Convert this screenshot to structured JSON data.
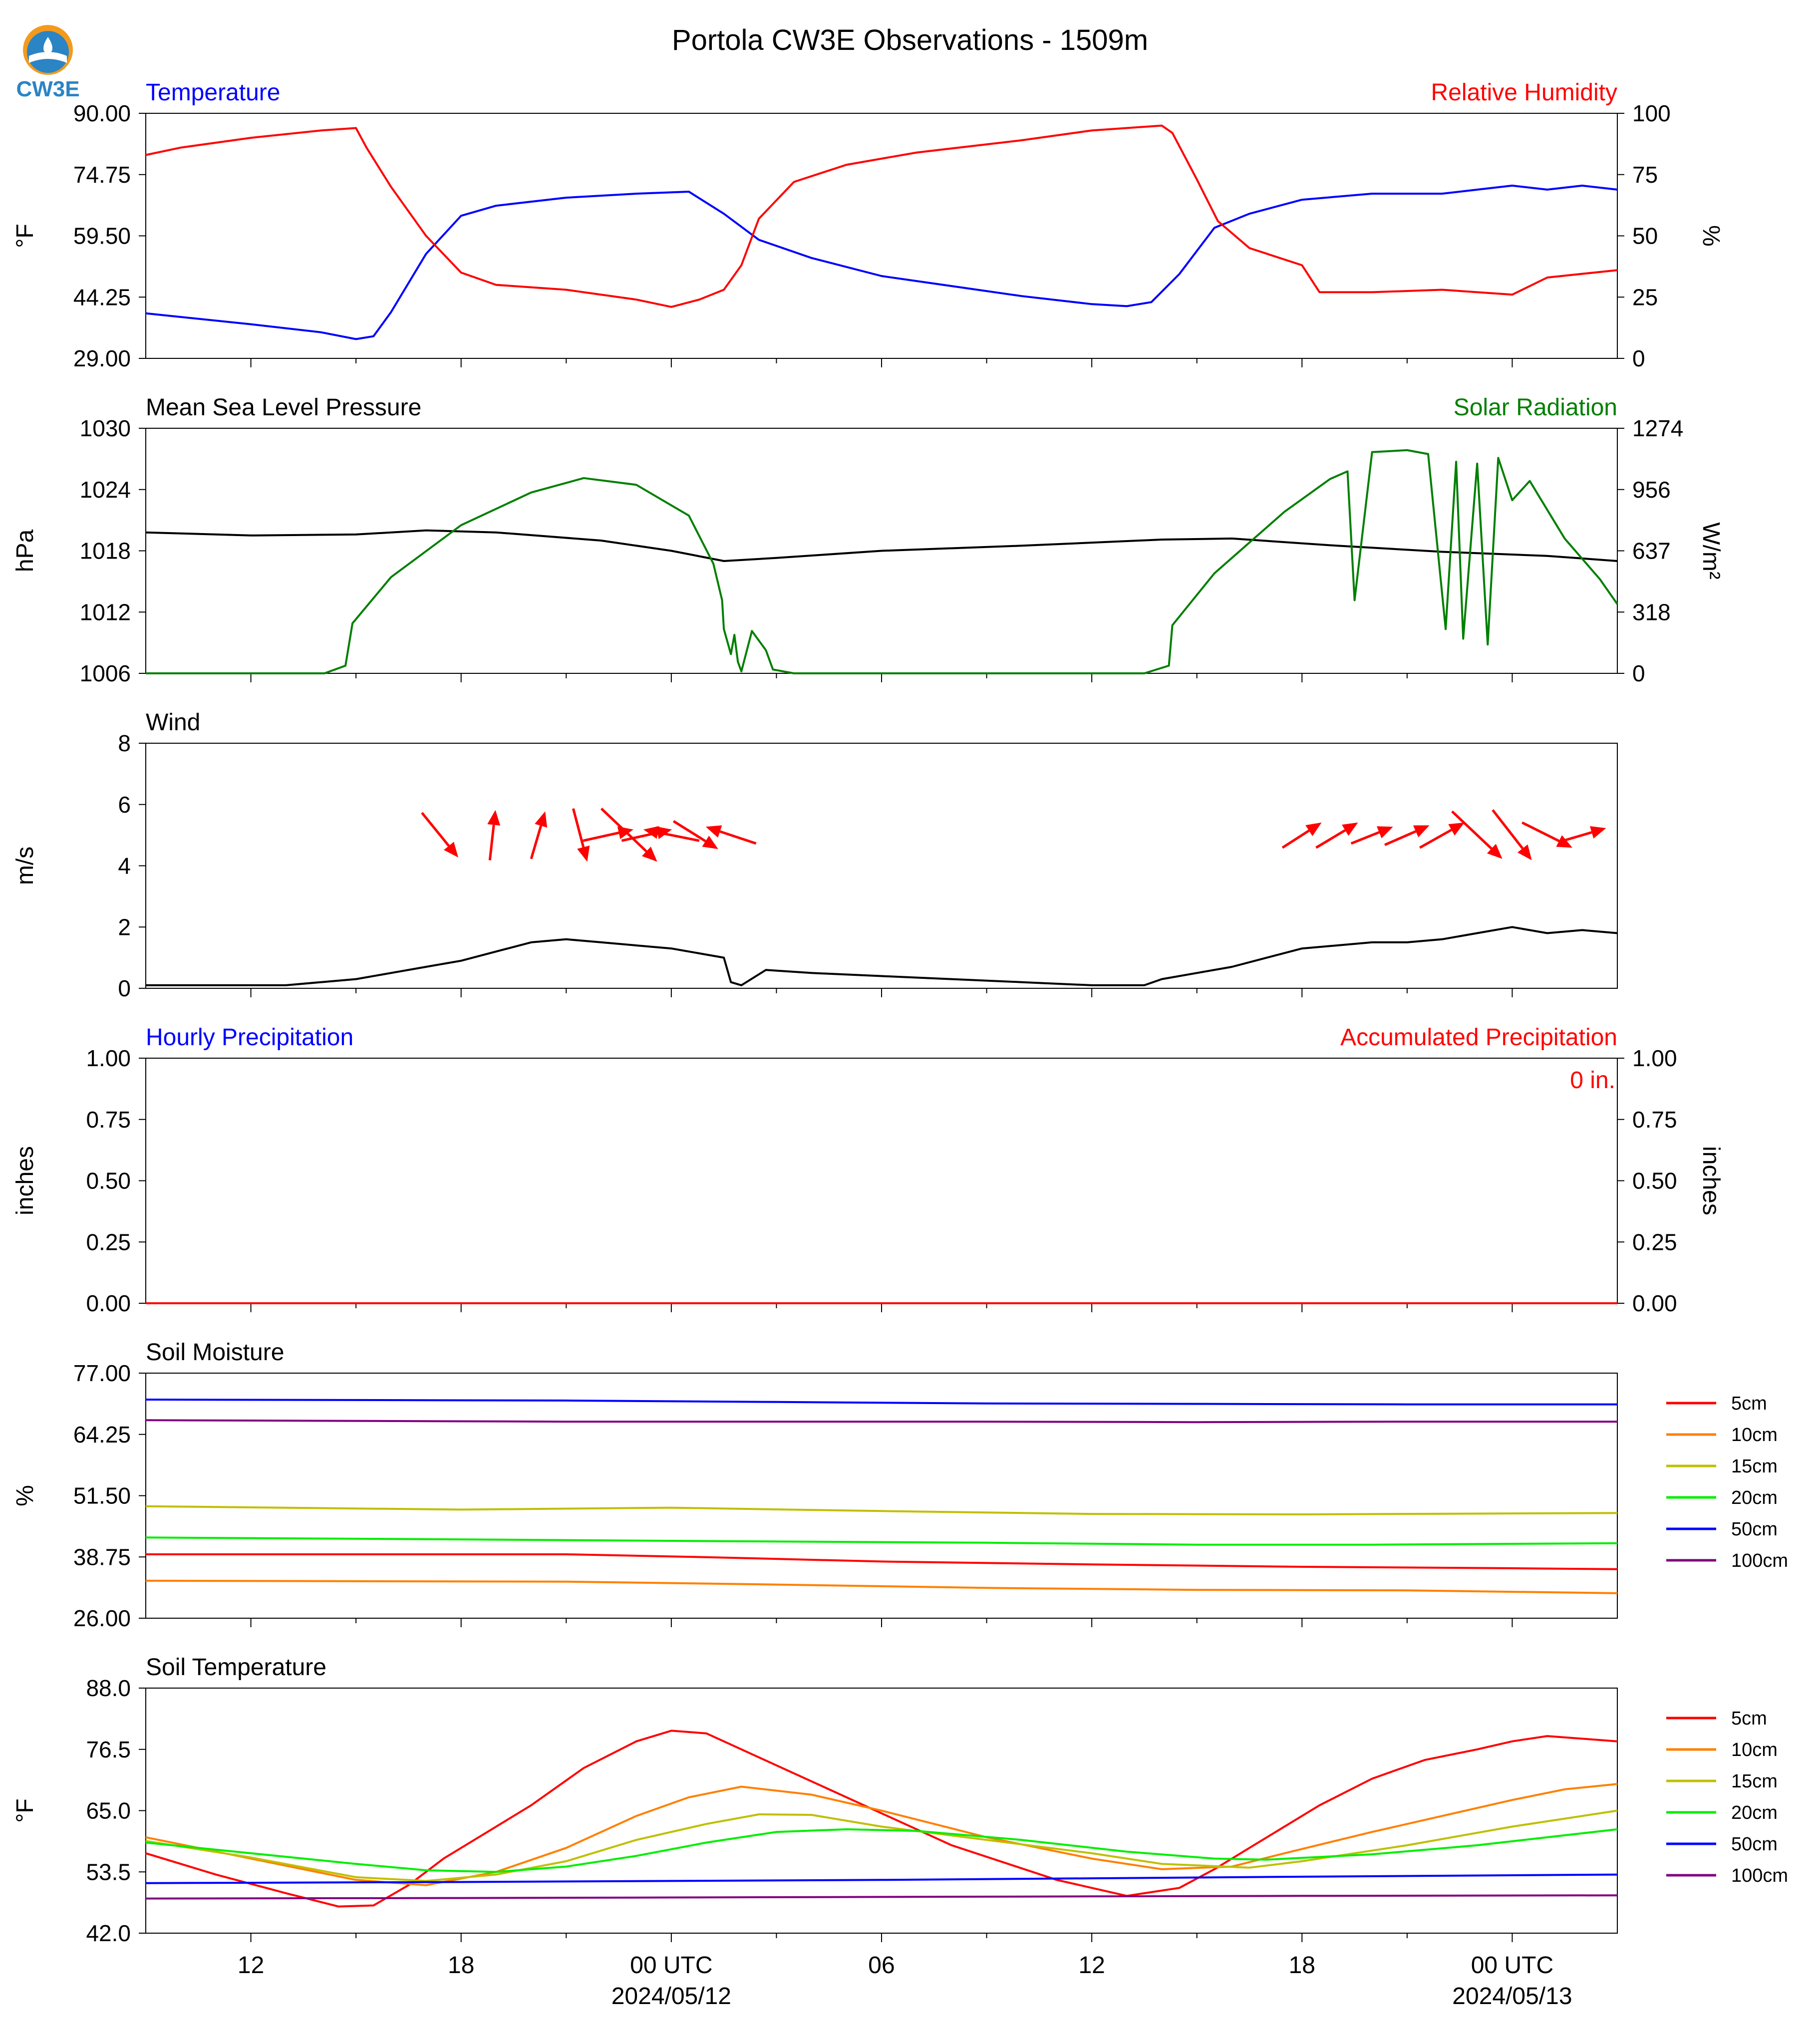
{
  "figure": {
    "title": "Portola CW3E Observations - 1509m",
    "logo_text": "CW3E"
  },
  "time_axis": {
    "range_hours": [
      -15,
      27
    ],
    "ticks": [
      {
        "hour": -12,
        "label": "12",
        "sub": ""
      },
      {
        "hour": -6,
        "label": "18",
        "sub": ""
      },
      {
        "hour": 0,
        "label": "00 UTC",
        "sub": "2024/05/12"
      },
      {
        "hour": 6,
        "label": "06",
        "sub": ""
      },
      {
        "hour": 12,
        "label": "12",
        "sub": ""
      },
      {
        "hour": 18,
        "label": "18",
        "sub": ""
      },
      {
        "hour": 24,
        "label": "00 UTC",
        "sub": "2024/05/13"
      }
    ]
  },
  "colors": {
    "blue": "#0000ff",
    "red": "#ff0000",
    "green": "#007f00",
    "black": "#000000",
    "orange": "#ff8000",
    "olive": "#bfbf00",
    "lime": "#00ee00",
    "purple": "#800080"
  },
  "chart_data": [
    {
      "id": "temp_rh",
      "type": "line",
      "title_left": "Temperature",
      "title_right": "Relative Humidity",
      "ylabel_left": "°F",
      "ylabel_right": "%",
      "ylim_left": [
        29,
        90
      ],
      "ylim_right": [
        0,
        100
      ],
      "yticks_left": [
        "29.00",
        "44.25",
        "59.50",
        "74.75",
        "90.00"
      ],
      "yticks_right": [
        "0",
        "25",
        "50",
        "75",
        "100"
      ],
      "series": [
        {
          "name": "Temperature",
          "axis": "left",
          "color": "#0000ff",
          "x": [
            -15,
            -12,
            -10,
            -9,
            -8.5,
            -8,
            -7,
            -6,
            -5,
            -3,
            -1,
            0.5,
            1.5,
            2.5,
            4,
            6,
            8,
            10,
            12,
            13,
            13.7,
            14.5,
            15.5,
            16.5,
            18,
            20,
            22,
            24,
            25,
            26,
            27
          ],
          "y": [
            40.2,
            37.5,
            35.5,
            33.8,
            34.5,
            40.5,
            55,
            64.5,
            67,
            69,
            70,
            70.5,
            65,
            58.5,
            54,
            49.5,
            47,
            44.5,
            42.5,
            42,
            43,
            50,
            61.5,
            65,
            68.5,
            70,
            70,
            72,
            71,
            72,
            71
          ]
        },
        {
          "name": "Relative Humidity",
          "axis": "right",
          "color": "#ff0000",
          "x": [
            -15,
            -14,
            -12,
            -10,
            -9,
            -8.7,
            -8,
            -7,
            -6,
            -5,
            -3,
            -1,
            0,
            0.8,
            1.5,
            2,
            2.5,
            3.5,
            5,
            7,
            10,
            12,
            13,
            14,
            14.3,
            15,
            15.6,
            16.5,
            18,
            18.5,
            20,
            22,
            24,
            25,
            27
          ],
          "y": [
            83,
            86,
            90,
            93,
            94,
            86,
            70,
            50,
            35,
            30,
            28,
            24,
            21,
            24,
            28,
            38,
            57,
            72,
            79,
            84,
            89,
            93,
            94,
            95,
            92,
            73,
            56,
            45,
            38,
            27,
            27,
            28,
            26,
            33,
            36
          ]
        }
      ]
    },
    {
      "id": "pressure_solar",
      "type": "line",
      "title_left": "Mean Sea Level Pressure",
      "title_right": "Solar Radiation",
      "ylabel_left": "hPa",
      "ylabel_right": "W/m²",
      "ylim_left": [
        1006,
        1030
      ],
      "ylim_right": [
        0,
        1274
      ],
      "yticks_left": [
        "1006",
        "1012",
        "1018",
        "1024",
        "1030"
      ],
      "yticks_right": [
        "0",
        "318",
        "637",
        "956",
        "1274"
      ],
      "series": [
        {
          "name": "Mean Sea Level Pressure",
          "axis": "left",
          "color": "#000000",
          "x": [
            -15,
            -12,
            -9,
            -7,
            -5,
            -2,
            0,
            1.5,
            3,
            6,
            10,
            14,
            16,
            19,
            22,
            25,
            27
          ],
          "y": [
            1019.8,
            1019.5,
            1019.6,
            1020,
            1019.8,
            1019,
            1018,
            1017,
            1017.3,
            1018,
            1018.5,
            1019.1,
            1019.2,
            1018.5,
            1017.9,
            1017.5,
            1017
          ]
        },
        {
          "name": "Solar Radiation",
          "axis": "right",
          "color": "#007f00",
          "x": [
            -15,
            -9.9,
            -9.3,
            -9.1,
            -8,
            -6,
            -4,
            -2.5,
            -1,
            0.5,
            1.2,
            1.45,
            1.5,
            1.7,
            1.8,
            1.9,
            2,
            2.3,
            2.7,
            2.9,
            3.5,
            6,
            10,
            13.5,
            14.2,
            14.3,
            15.5,
            17.5,
            18.8,
            19.3,
            19.5,
            20,
            21,
            21.6,
            22.1,
            22.4,
            22.6,
            23,
            23.3,
            23.6,
            24,
            24.5,
            25,
            25.5,
            26.5,
            27
          ],
          "y": [
            0,
            0,
            40,
            260,
            500,
            770,
            940,
            1015,
            980,
            820,
            570,
            380,
            230,
            100,
            200,
            60,
            10,
            220,
            120,
            20,
            0,
            0,
            0,
            0,
            40,
            250,
            520,
            840,
            1010,
            1050,
            380,
            1150,
            1160,
            1140,
            230,
            1100,
            180,
            1090,
            150,
            1120,
            900,
            1000,
            850,
            700,
            490,
            360
          ]
        }
      ]
    },
    {
      "id": "wind",
      "type": "line",
      "title_left": "Wind",
      "ylabel_left": "m/s",
      "ylim_left": [
        0,
        8
      ],
      "yticks_left": [
        "0",
        "2",
        "4",
        "6",
        "8"
      ],
      "series": [
        {
          "name": "Wind Speed",
          "axis": "left",
          "color": "#000000",
          "x": [
            -15,
            -11,
            -10,
            -9,
            -8,
            -7,
            -6,
            -5,
            -4,
            -3,
            -2,
            -1,
            0,
            1,
            1.5,
            1.7,
            2,
            2.7,
            4,
            6,
            8,
            10,
            12,
            13.5,
            14,
            15,
            16,
            17,
            18,
            19,
            20,
            21,
            22,
            23,
            24,
            25,
            26,
            27
          ],
          "y": [
            0.1,
            0.1,
            0.2,
            0.3,
            0.5,
            0.7,
            0.9,
            1.2,
            1.5,
            1.6,
            1.5,
            1.4,
            1.3,
            1.1,
            1.0,
            0.2,
            0.1,
            0.6,
            0.5,
            0.4,
            0.3,
            0.2,
            0.1,
            0.1,
            0.3,
            0.5,
            0.7,
            1.0,
            1.3,
            1.4,
            1.5,
            1.5,
            1.6,
            1.8,
            2.0,
            1.8,
            1.9,
            1.8
          ]
        }
      ],
      "arrows": {
        "hours": [
          -6.6,
          -5.1,
          -3.8,
          -2.6,
          -1.8,
          -1.2,
          -0.7,
          0,
          0.7,
          1.7,
          18,
          19,
          20,
          21,
          22,
          23,
          24,
          25,
          26
        ],
        "u": [
          1.3,
          0.2,
          0.5,
          0.5,
          1.8,
          2,
          1.8,
          -2,
          1.6,
          -1.8,
          1.4,
          1.5,
          1.5,
          1.6,
          1.6,
          1.8,
          1.4,
          1.8,
          1.7
        ],
        "v": [
          -1.6,
          1.8,
          1.7,
          -1.9,
          0.4,
          -1.9,
          0.4,
          0.4,
          -1.0,
          0.6,
          0.9,
          0.9,
          0.6,
          0.7,
          0.9,
          -1.7,
          -1.8,
          -0.9,
          0.5
        ]
      }
    },
    {
      "id": "precip",
      "type": "line",
      "title_left": "Hourly Precipitation",
      "title_right": "Accumulated Precipitation",
      "ylabel_left": "inches",
      "ylabel_right": "inches",
      "ylim_left": [
        0,
        1
      ],
      "ylim_right": [
        0,
        1
      ],
      "yticks_left": [
        "0.00",
        "0.25",
        "0.50",
        "0.75",
        "1.00"
      ],
      "yticks_right": [
        "0.00",
        "0.25",
        "0.50",
        "0.75",
        "1.00"
      ],
      "annotation": "0 in.",
      "series": [
        {
          "name": "Hourly Precipitation",
          "axis": "left",
          "color": "#0000ff",
          "x": [
            -15,
            27
          ],
          "y": [
            0,
            0
          ]
        },
        {
          "name": "Accumulated Precipitation",
          "axis": "right",
          "color": "#ff0000",
          "x": [
            -15,
            27
          ],
          "y": [
            0,
            0
          ]
        }
      ]
    },
    {
      "id": "soil_moisture",
      "type": "line",
      "title_left": "Soil Moisture",
      "ylabel_left": "%",
      "ylim_left": [
        26,
        77
      ],
      "yticks_left": [
        "26.00",
        "38.75",
        "51.50",
        "64.25",
        "77.00"
      ],
      "series": [
        {
          "name": "5cm",
          "axis": "left",
          "color": "#ff0000",
          "x": [
            -15,
            -3,
            1,
            6,
            12,
            18,
            24,
            27
          ],
          "y": [
            39.3,
            39.3,
            38.7,
            37.8,
            37.2,
            36.7,
            36.4,
            36.2
          ]
        },
        {
          "name": "10cm",
          "axis": "left",
          "color": "#ff8000",
          "x": [
            -15,
            -3,
            3,
            9,
            15,
            21,
            27
          ],
          "y": [
            33.8,
            33.6,
            33.0,
            32.3,
            31.9,
            31.8,
            31.2
          ]
        },
        {
          "name": "15cm",
          "axis": "left",
          "color": "#bfbf00",
          "x": [
            -15,
            -6,
            0,
            6,
            12,
            18,
            27
          ],
          "y": [
            49.3,
            48.6,
            49.0,
            48.3,
            47.7,
            47.6,
            47.9
          ]
        },
        {
          "name": "20cm",
          "axis": "left",
          "color": "#00ee00",
          "x": [
            -15,
            -6,
            0,
            9,
            15,
            20,
            27
          ],
          "y": [
            42.8,
            42.4,
            42.1,
            41.7,
            41.3,
            41.3,
            41.6
          ]
        },
        {
          "name": "50cm",
          "axis": "left",
          "color": "#0000ff",
          "x": [
            -15,
            -3,
            3,
            9,
            15,
            21,
            27
          ],
          "y": [
            71.5,
            71.3,
            71.0,
            70.7,
            70.6,
            70.5,
            70.5
          ]
        },
        {
          "name": "100cm",
          "axis": "left",
          "color": "#800080",
          "x": [
            -15,
            -3,
            3,
            9,
            15,
            21,
            27
          ],
          "y": [
            67.2,
            66.9,
            66.9,
            66.9,
            66.8,
            66.9,
            66.9
          ]
        }
      ]
    },
    {
      "id": "soil_temp",
      "type": "line",
      "title_left": "Soil Temperature",
      "ylabel_left": "°F",
      "ylim_left": [
        42,
        88
      ],
      "yticks_left": [
        "42.0",
        "53.5",
        "65.0",
        "76.5",
        "88.0"
      ],
      "series": [
        {
          "name": "5cm",
          "axis": "left",
          "color": "#ff0000",
          "x": [
            -15,
            -13,
            -11,
            -9.5,
            -8.5,
            -7.5,
            -6.5,
            -5.5,
            -4,
            -2.5,
            -1,
            0,
            1,
            3,
            5,
            8,
            11,
            13,
            14.5,
            15.5,
            16.5,
            17.5,
            18.5,
            20,
            21.5,
            23,
            24,
            25,
            27
          ],
          "y": [
            57,
            53,
            49.5,
            47,
            47.2,
            51,
            56,
            60,
            66,
            73,
            78,
            80,
            79.5,
            73.5,
            67.5,
            58.5,
            52,
            49,
            50.5,
            54,
            58,
            62,
            66,
            71,
            74.5,
            76.5,
            78,
            79,
            78
          ]
        },
        {
          "name": "10cm",
          "axis": "left",
          "color": "#ff8000",
          "x": [
            -15,
            -12,
            -9,
            -7,
            -5,
            -3,
            -1,
            0.5,
            2,
            4,
            6,
            9,
            12,
            14,
            16,
            17.5,
            20,
            22,
            24,
            25.5,
            27
          ],
          "y": [
            60,
            56,
            52,
            51,
            53.5,
            58,
            64,
            67.5,
            69.5,
            68,
            65,
            60,
            56,
            54,
            54.5,
            57,
            61,
            64,
            67,
            69,
            70
          ]
        },
        {
          "name": "15cm",
          "axis": "left",
          "color": "#bfbf00",
          "x": [
            -15,
            -12,
            -9,
            -7,
            -5,
            -3,
            -1,
            1,
            2.5,
            4,
            6,
            9,
            12,
            14,
            16.5,
            18,
            21,
            24,
            27
          ],
          "y": [
            59.3,
            56.2,
            52.5,
            51.8,
            53,
            55.5,
            59.5,
            62.5,
            64.3,
            64.2,
            62,
            59.5,
            57,
            55,
            54.3,
            55.5,
            58.5,
            62,
            65
          ]
        },
        {
          "name": "20cm",
          "axis": "left",
          "color": "#00ee00",
          "x": [
            -15,
            -12,
            -9,
            -7,
            -5,
            -3,
            -1,
            1,
            3,
            5,
            7,
            10,
            13,
            15.5,
            17,
            20,
            23,
            25,
            27
          ],
          "y": [
            59,
            57,
            55,
            53.8,
            53.5,
            54.5,
            56.5,
            59,
            61,
            61.5,
            61.2,
            59.5,
            57.3,
            56,
            55.8,
            56.8,
            58.5,
            60,
            61.5
          ]
        },
        {
          "name": "50cm",
          "axis": "left",
          "color": "#0000ff",
          "x": [
            -15,
            -6,
            0,
            6,
            12,
            18,
            27
          ],
          "y": [
            51.4,
            51.6,
            51.8,
            52.0,
            52.3,
            52.6,
            53.0
          ]
        },
        {
          "name": "100cm",
          "axis": "left",
          "color": "#800080",
          "x": [
            -15,
            -6,
            0,
            6,
            12,
            18,
            27
          ],
          "y": [
            48.5,
            48.6,
            48.7,
            48.8,
            48.9,
            49.0,
            49.1
          ]
        }
      ]
    }
  ]
}
